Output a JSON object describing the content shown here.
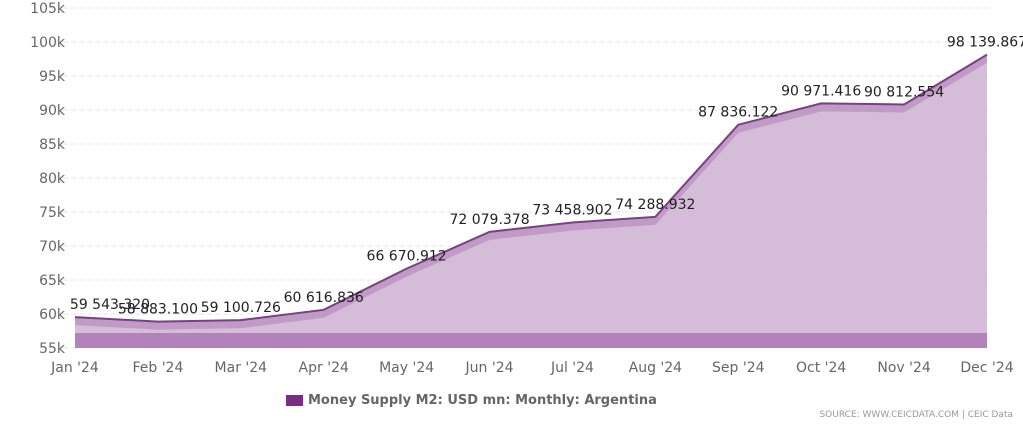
{
  "chart_data": {
    "type": "area",
    "title": "",
    "xlabel": "",
    "ylabel": "",
    "categories": [
      "Jan '24",
      "Feb '24",
      "Mar '24",
      "Apr '24",
      "May '24",
      "Jun '24",
      "Jul '24",
      "Aug '24",
      "Sep '24",
      "Oct '24",
      "Nov '24",
      "Dec '24"
    ],
    "series": [
      {
        "name": "Money Supply M2: USD mn: Monthly: Argentina",
        "values": [
          59543.32,
          58883.1,
          59100.726,
          60616.836,
          66670.912,
          72079.378,
          73458.902,
          74288.932,
          87836.122,
          90971.416,
          90812.554,
          98139.867
        ],
        "labels": [
          "59 543.320",
          "58 883.100",
          "59 100.726",
          "60 616.836",
          "66 670.912",
          "72 079.378",
          "73 458.902",
          "74 288.932",
          "87 836.122",
          "90 971.416",
          "90 812.554",
          "98 139.867"
        ]
      }
    ],
    "ylim": [
      55000,
      105000
    ],
    "yticks": [
      55000,
      60000,
      65000,
      70000,
      75000,
      80000,
      85000,
      90000,
      95000,
      100000,
      105000
    ],
    "ytick_labels": [
      "55k",
      "60k",
      "65k",
      "70k",
      "75k",
      "80k",
      "85k",
      "90k",
      "95k",
      "100k",
      "105k"
    ],
    "grid": true,
    "legend_position": "bottom-center"
  },
  "colors": {
    "line": "#7b3f85",
    "fill": "#d5bcd8",
    "band": "#bf9bc5",
    "base": "#b183b8",
    "legend": "#7b2d86"
  },
  "legend_label": "Money Supply M2: USD mn: Monthly: Argentina",
  "source": "SOURCE: WWW.CEICDATA.COM | CEIC Data"
}
